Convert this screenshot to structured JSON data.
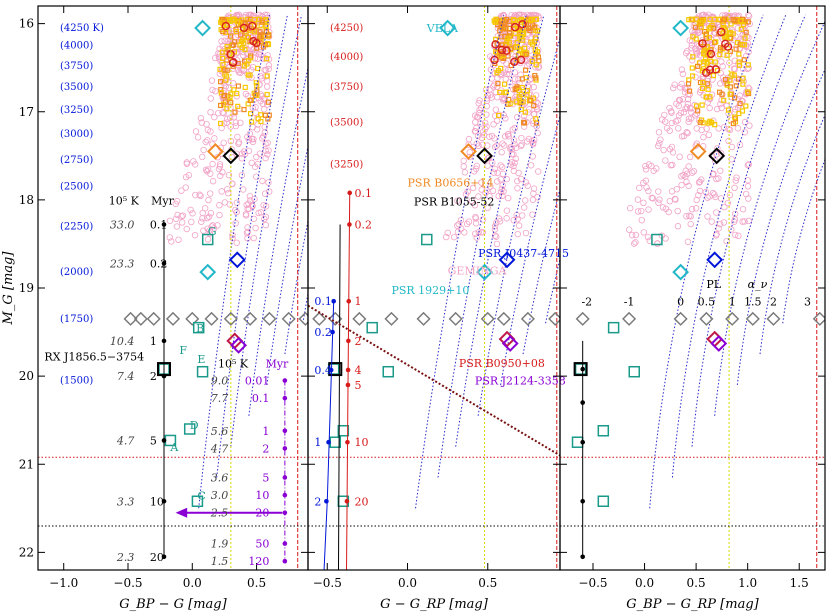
{
  "chart_data": {
    "type": "scatter",
    "title": "",
    "colors": {
      "field_circle": "#f2a3c7",
      "field_square_yellow": "#f7c800",
      "field_square_orange": "#f08a24",
      "field_circle_red": "#d62020",
      "grid_lines": "#2a2ad0",
      "black": "#000000",
      "blue": "#0016d8",
      "red": "#d71a1a",
      "purple": "#8a00d4",
      "teal": "#1a9a8a",
      "cyan": "#22b8c8",
      "orange": "#f08a24",
      "darkred": "#c01a4a",
      "gray": "#7a7a7a",
      "dotted_maroon": "#7a1010"
    },
    "y_axis": {
      "label": "M_G [mag]",
      "range": [
        15.8,
        22.2
      ],
      "ticks": [
        "16",
        "17",
        "18",
        "19",
        "20",
        "21",
        "22"
      ],
      "inverted": true
    },
    "panels": [
      {
        "name": "panel-bp-g",
        "xlabel": "G_BP − G  [mag]",
        "xrange": [
          -1.2,
          0.9
        ],
        "xticks": [
          "−1.0",
          "−0.5",
          "0.0",
          "0.5"
        ],
        "xtick_values": [
          -1.0,
          -0.5,
          0.0,
          0.5
        ],
        "left_labels": [
          {
            "text": "(4250 K)",
            "y": 16.05
          },
          {
            "text": "(4000)",
            "y": 16.25
          },
          {
            "text": "(3750)",
            "y": 16.48
          },
          {
            "text": "(3500)",
            "y": 16.72
          },
          {
            "text": "(3250)",
            "y": 16.98
          },
          {
            "text": "(3000)",
            "y": 17.25
          },
          {
            "text": "(2750)",
            "y": 17.55
          },
          {
            "text": "(2500)",
            "y": 17.85
          },
          {
            "text": "(2250)",
            "y": 18.3
          },
          {
            "text": "(2000)",
            "y": 18.82
          },
          {
            "text": "(1750)",
            "y": 19.35
          },
          {
            "text": "(1500)",
            "y": 20.05
          }
        ],
        "cooling_header_K": "10⁵ K",
        "cooling_header_Myr": "Myr",
        "cooling_track": [
          {
            "T": "33.0",
            "age": "0.1",
            "y": 18.28
          },
          {
            "T": "23.3",
            "age": "0.2",
            "y": 18.72
          },
          {
            "T": "10.4",
            "age": "1",
            "y": 19.6
          },
          {
            "T": "7.4",
            "age": "2",
            "y": 20.0
          },
          {
            "T": "4.7",
            "age": "5",
            "y": 20.73
          },
          {
            "T": "3.3",
            "age": "10",
            "y": 21.42
          },
          {
            "T": "2.3",
            "age": "20",
            "y": 22.05
          }
        ],
        "second_track_header_K": "10⁵ K",
        "second_track_header_Myr": "Myr",
        "second_track": [
          {
            "T": "9.0",
            "age": "0.01",
            "y": 20.05
          },
          {
            "T": "7.7",
            "age": "0.1",
            "y": 20.25
          },
          {
            "T": "5.6",
            "age": "1",
            "y": 20.62
          },
          {
            "T": "4.7",
            "age": "2",
            "y": 20.82
          },
          {
            "T": "3.6",
            "age": "5",
            "y": 21.15
          },
          {
            "T": "3.0",
            "age": "10",
            "y": 21.35
          },
          {
            "T": "2.5",
            "age": "20",
            "y": 21.55
          },
          {
            "T": "1.9",
            "age": "50",
            "y": 21.9
          },
          {
            "T": "1.5",
            "age": "120",
            "y": 22.1
          }
        ],
        "rx_label": "RX J1856.5−3754",
        "letters": [
          {
            "t": "G",
            "x": 0.12,
            "y": 18.4
          },
          {
            "t": "B",
            "x": 0.03,
            "y": 19.5
          },
          {
            "t": "F",
            "x": -0.1,
            "y": 19.75
          },
          {
            "t": "E",
            "x": 0.04,
            "y": 19.85
          },
          {
            "t": "D",
            "x": -0.02,
            "y": 20.6
          },
          {
            "t": "A",
            "x": -0.17,
            "y": 20.85
          },
          {
            "t": "C",
            "x": 0.04,
            "y": 21.4
          }
        ]
      },
      {
        "name": "panel-g-rp",
        "xlabel": "G − G_RP  [mag]",
        "xrange": [
          -0.62,
          0.95
        ],
        "xticks": [
          "−0.5",
          "0.0",
          "0.5"
        ],
        "xtick_values": [
          -0.5,
          0.0,
          0.5
        ],
        "left_labels": [
          {
            "text": "(4250)",
            "y": 16.05
          },
          {
            "text": "(4000)",
            "y": 16.38
          },
          {
            "text": "(3750)",
            "y": 16.72
          },
          {
            "text": "(3500)",
            "y": 17.12
          },
          {
            "text": "(3250)",
            "y": 17.6
          }
        ],
        "blue_track": [
          {
            "age": "0.1",
            "y": 19.15
          },
          {
            "age": "0.2",
            "y": 19.5
          },
          {
            "age": "0.4",
            "y": 19.93
          },
          {
            "age": "1",
            "y": 20.75
          },
          {
            "age": "2",
            "y": 21.42
          }
        ],
        "red_track": [
          {
            "age": "0.1",
            "y": 17.92
          },
          {
            "age": "0.2",
            "y": 18.28
          },
          {
            "age": "1",
            "y": 19.15
          },
          {
            "age": "2",
            "y": 19.6
          },
          {
            "age": "4",
            "y": 19.93
          },
          {
            "age": "5",
            "y": 20.1
          },
          {
            "age": "10",
            "y": 20.75
          },
          {
            "age": "20",
            "y": 21.42
          }
        ],
        "pulsars": [
          {
            "name": "VELA",
            "x": 0.12,
            "y": 16.05,
            "color": "#22b8c8"
          },
          {
            "name": "PSR B0656+14",
            "x": 0.0,
            "y": 17.8,
            "color": "#f08a24"
          },
          {
            "name": "PSR B1055-52",
            "x": 0.04,
            "y": 18.02,
            "color": "#000000"
          },
          {
            "name": "PSR J0437-4715",
            "x": 0.44,
            "y": 18.6,
            "color": "#0016d8"
          },
          {
            "name": "GEMINGA",
            "x": 0.25,
            "y": 18.8,
            "color": "#f2a3c7"
          },
          {
            "name": "PSR 1929+10",
            "x": -0.1,
            "y": 19.02,
            "color": "#22b8c8"
          },
          {
            "name": "PSR B0950+08",
            "x": 0.32,
            "y": 19.85,
            "color": "#d71a1a"
          },
          {
            "name": "PSR J2124-3358",
            "x": 0.42,
            "y": 20.05,
            "color": "#8a00d4"
          }
        ]
      },
      {
        "name": "panel-bp-rp",
        "xlabel": "G_BP − G_RP  [mag]",
        "xrange": [
          -0.82,
          1.75
        ],
        "xticks": [
          "−0.5",
          "0.0",
          "0.5",
          "1.0",
          "1.5"
        ],
        "xtick_values": [
          -0.5,
          0.0,
          0.5,
          1.0,
          1.5
        ],
        "pl_label": "PL",
        "alpha_label": "α_ν",
        "alpha_values": [
          {
            "t": "-2",
            "x": -0.56
          },
          {
            "t": "-1",
            "x": -0.15
          },
          {
            "t": "0",
            "x": 0.35
          },
          {
            "t": "0.5",
            "x": 0.6
          },
          {
            "t": "1",
            "x": 0.85
          },
          {
            "t": "1.5",
            "x": 1.05
          },
          {
            "t": "2",
            "x": 1.25
          },
          {
            "t": "3",
            "x": 1.58
          }
        ]
      }
    ]
  }
}
